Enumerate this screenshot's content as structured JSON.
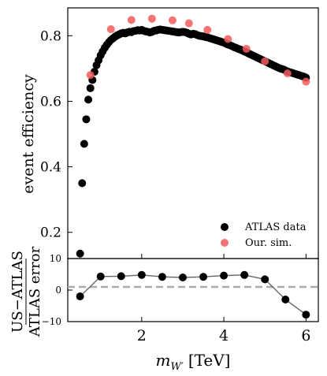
{
  "chart_data": [
    {
      "type": "scatter",
      "ylabel": "event efficiency",
      "xlim": [
        0.2,
        6.3
      ],
      "ylim": [
        0.12,
        0.885
      ],
      "yticks": [
        0.2,
        0.4,
        0.6,
        0.8
      ],
      "grid": false,
      "legend_placement": "bottom-right",
      "series": [
        {
          "name": "ATLAS data",
          "color": "#000000",
          "points": [
            [
              0.5,
              0.135
            ],
            [
              0.55,
              0.35
            ],
            [
              0.6,
              0.47
            ],
            [
              0.65,
              0.545
            ],
            [
              0.7,
              0.605
            ],
            [
              0.75,
              0.64
            ],
            [
              0.8,
              0.665
            ],
            [
              0.85,
              0.69
            ],
            [
              0.9,
              0.71
            ],
            [
              0.95,
              0.725
            ],
            [
              1.0,
              0.74
            ],
            [
              1.05,
              0.752
            ],
            [
              1.1,
              0.763
            ],
            [
              1.15,
              0.772
            ],
            [
              1.2,
              0.78
            ],
            [
              1.25,
              0.787
            ],
            [
              1.3,
              0.792
            ],
            [
              1.35,
              0.797
            ],
            [
              1.4,
              0.801
            ],
            [
              1.45,
              0.804
            ],
            [
              1.5,
              0.807
            ],
            [
              1.55,
              0.809
            ],
            [
              1.6,
              0.807
            ],
            [
              1.65,
              0.81
            ],
            [
              1.7,
              0.812
            ],
            [
              1.75,
              0.811
            ],
            [
              1.8,
              0.814
            ],
            [
              1.85,
              0.815
            ],
            [
              1.9,
              0.817
            ],
            [
              1.95,
              0.816
            ],
            [
              2.0,
              0.818
            ],
            [
              2.05,
              0.815
            ],
            [
              2.1,
              0.813
            ],
            [
              2.15,
              0.812
            ],
            [
              2.2,
              0.81
            ],
            [
              2.25,
              0.812
            ],
            [
              2.3,
              0.815
            ],
            [
              2.35,
              0.816
            ],
            [
              2.4,
              0.818
            ],
            [
              2.45,
              0.819
            ],
            [
              2.5,
              0.818
            ],
            [
              2.55,
              0.817
            ],
            [
              2.6,
              0.816
            ],
            [
              2.65,
              0.815
            ],
            [
              2.7,
              0.814
            ],
            [
              2.75,
              0.813
            ],
            [
              2.8,
              0.812
            ],
            [
              2.85,
              0.811
            ],
            [
              2.9,
              0.81
            ],
            [
              2.95,
              0.811
            ],
            [
              3.0,
              0.812
            ],
            [
              3.05,
              0.811
            ],
            [
              3.1,
              0.809
            ],
            [
              3.15,
              0.806
            ],
            [
              3.2,
              0.804
            ],
            [
              3.25,
              0.806
            ],
            [
              3.3,
              0.805
            ],
            [
              3.35,
              0.802
            ],
            [
              3.4,
              0.8
            ],
            [
              3.45,
              0.799
            ],
            [
              3.5,
              0.798
            ],
            [
              3.55,
              0.796
            ],
            [
              3.6,
              0.795
            ],
            [
              3.65,
              0.793
            ],
            [
              3.7,
              0.791
            ],
            [
              3.75,
              0.789
            ],
            [
              3.8,
              0.787
            ],
            [
              3.85,
              0.785
            ],
            [
              3.9,
              0.783
            ],
            [
              3.95,
              0.781
            ],
            [
              4.0,
              0.779
            ],
            [
              4.05,
              0.776
            ],
            [
              4.1,
              0.773
            ],
            [
              4.15,
              0.771
            ],
            [
              4.2,
              0.768
            ],
            [
              4.25,
              0.765
            ],
            [
              4.3,
              0.763
            ],
            [
              4.35,
              0.76
            ],
            [
              4.4,
              0.758
            ],
            [
              4.45,
              0.755
            ],
            [
              4.5,
              0.752
            ],
            [
              4.55,
              0.749
            ],
            [
              4.6,
              0.746
            ],
            [
              4.65,
              0.743
            ],
            [
              4.7,
              0.74
            ],
            [
              4.75,
              0.737
            ],
            [
              4.8,
              0.734
            ],
            [
              4.85,
              0.731
            ],
            [
              4.9,
              0.728
            ],
            [
              4.95,
              0.725
            ],
            [
              5.0,
              0.722
            ],
            [
              5.05,
              0.719
            ],
            [
              5.1,
              0.716
            ],
            [
              5.15,
              0.713
            ],
            [
              5.2,
              0.71
            ],
            [
              5.25,
              0.707
            ],
            [
              5.3,
              0.704
            ],
            [
              5.35,
              0.701
            ],
            [
              5.4,
              0.699
            ],
            [
              5.45,
              0.697
            ],
            [
              5.5,
              0.694
            ],
            [
              5.55,
              0.691
            ],
            [
              5.6,
              0.689
            ],
            [
              5.65,
              0.687
            ],
            [
              5.7,
              0.685
            ],
            [
              5.75,
              0.683
            ],
            [
              5.8,
              0.681
            ],
            [
              5.85,
              0.679
            ],
            [
              5.9,
              0.677
            ],
            [
              5.95,
              0.675
            ],
            [
              6.0,
              0.672
            ]
          ]
        },
        {
          "name": "Our. sim.",
          "color": "#f25a5a",
          "points": [
            [
              0.75,
              0.68
            ],
            [
              1.25,
              0.82
            ],
            [
              1.75,
              0.848
            ],
            [
              2.25,
              0.852
            ],
            [
              2.75,
              0.847
            ],
            [
              3.15,
              0.838
            ],
            [
              3.6,
              0.818
            ],
            [
              4.1,
              0.79
            ],
            [
              4.55,
              0.76
            ],
            [
              5.0,
              0.722
            ],
            [
              5.55,
              0.685
            ],
            [
              6.0,
              0.66
            ]
          ]
        }
      ]
    },
    {
      "type": "line",
      "ylabel_numerator": "US−ATLAS",
      "ylabel_denominator": "ATLAS error",
      "xlabel": "m_{W′} [TeV]",
      "xlabel_main": "m",
      "xlabel_sub": "W′",
      "xlabel_unit": "[TeV]",
      "xlim": [
        0.2,
        6.3
      ],
      "ylim": [
        -10,
        10
      ],
      "xticks": [
        2,
        4,
        6
      ],
      "yticks": [
        -10,
        0,
        10
      ],
      "reference_line": 1,
      "x": [
        0.5,
        1.0,
        1.5,
        2.0,
        2.5,
        3.0,
        3.5,
        4.0,
        4.5,
        5.0,
        5.5,
        6.0
      ],
      "values": [
        -2.0,
        4.3,
        4.4,
        4.8,
        4.2,
        4.0,
        4.2,
        4.6,
        4.8,
        3.4,
        -3.0,
        -7.8
      ]
    }
  ]
}
